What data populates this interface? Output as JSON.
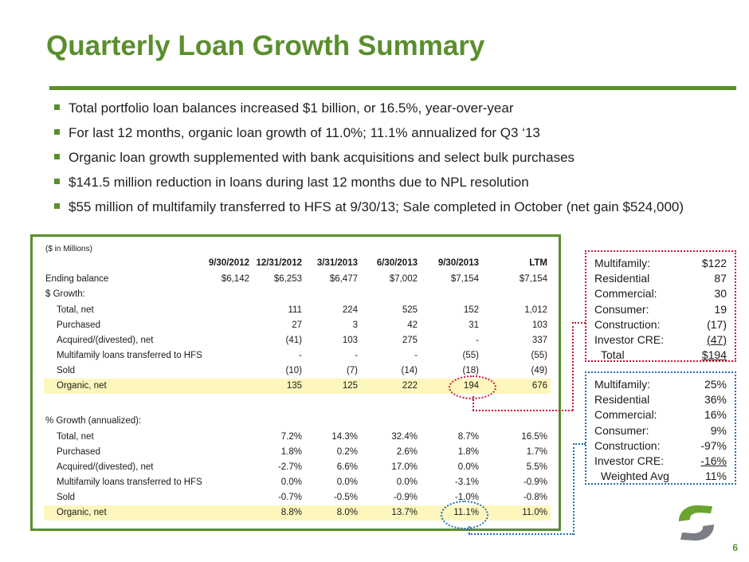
{
  "title": "Quarterly Loan Growth Summary",
  "bullets": [
    "Total portfolio loan balances increased $1 billion, or 16.5%, year-over-year",
    "For last 12 months, organic loan growth of 11.0%; 11.1% annualized for Q3 ‘13",
    "Organic loan growth supplemented with bank acquisitions and select bulk purchases",
    "$141.5 million reduction in loans during last 12 months due to NPL resolution",
    "$55 million of multifamily transferred to HFS at 9/30/13; Sale completed in October (net gain $524,000)"
  ],
  "table": {
    "unit_note": "($ in Millions)",
    "columns": [
      "9/30/2012",
      "12/31/2012",
      "3/31/2013",
      "6/30/2013",
      "9/30/2013",
      "LTM"
    ],
    "ending": {
      "label": "Ending balance",
      "values": [
        "$6,142",
        "$6,253",
        "$6,477",
        "$7,002",
        "$7,154",
        "$7,154"
      ]
    },
    "growth_header": "$ Growth:",
    "growth_rows": [
      {
        "label": "Total, net",
        "values": [
          "111",
          "224",
          "525",
          "152",
          "1,012"
        ]
      },
      {
        "label": "Purchased",
        "values": [
          "27",
          "3",
          "42",
          "31",
          "103"
        ]
      },
      {
        "label": "Acquired/(divested), net",
        "values": [
          "(41)",
          "103",
          "275",
          "-",
          "337"
        ]
      },
      {
        "label": "Multifamily loans transferred to HFS",
        "values": [
          "-",
          "-",
          "-",
          "(55)",
          "(55)"
        ]
      },
      {
        "label": "Sold",
        "values": [
          "(10)",
          "(7)",
          "(14)",
          "(18)",
          "(49)"
        ]
      },
      {
        "label": "Organic, net",
        "values": [
          "135",
          "125",
          "222",
          "194",
          "676"
        ]
      }
    ],
    "pct_header": "% Growth (annualized):",
    "pct_rows": [
      {
        "label": "Total, net",
        "values": [
          "7.2%",
          "14.3%",
          "32.4%",
          "8.7%",
          "16.5%"
        ]
      },
      {
        "label": "Purchased",
        "values": [
          "1.8%",
          "0.2%",
          "2.6%",
          "1.8%",
          "1.7%"
        ]
      },
      {
        "label": "Acquired/(divested), net",
        "values": [
          "-2.7%",
          "6.6%",
          "17.0%",
          "0.0%",
          "5.5%"
        ]
      },
      {
        "label": "Multifamily loans transferred to HFS",
        "values": [
          "0.0%",
          "0.0%",
          "0.0%",
          "-3.1%",
          "-0.9%"
        ]
      },
      {
        "label": "Sold",
        "values": [
          "-0.7%",
          "-0.5%",
          "-0.9%",
          "-1.0%",
          "-0.8%"
        ]
      },
      {
        "label": "Organic, net",
        "values": [
          "8.8%",
          "8.0%",
          "13.7%",
          "11.1%",
          "11.0%"
        ]
      }
    ]
  },
  "red_box": {
    "rows": [
      {
        "k": "Multifamily:",
        "v": "$122"
      },
      {
        "k": "Residential",
        "v": "87"
      },
      {
        "k": "Commercial:",
        "v": "30"
      },
      {
        "k": "Consumer:",
        "v": "19"
      },
      {
        "k": "Construction:",
        "v": "(17)"
      },
      {
        "k": "Investor CRE:",
        "v": "(47)"
      },
      {
        "k": "Total",
        "v": "$194"
      }
    ]
  },
  "blue_box": {
    "rows": [
      {
        "k": "Multifamily:",
        "v": "25%"
      },
      {
        "k": "Residential",
        "v": "36%"
      },
      {
        "k": "Commercial:",
        "v": "16%"
      },
      {
        "k": "Consumer:",
        "v": "9%"
      },
      {
        "k": "Construction:",
        "v": "-97%"
      },
      {
        "k": "Investor CRE:",
        "v": "-16%"
      },
      {
        "k": "Weighted Avg",
        "v": "11%"
      }
    ]
  },
  "colors": {
    "brand_green": "#5a8f2d",
    "highlight": "#fdf7bd",
    "red_callout": "#c8143c",
    "blue_callout": "#1f6fb8"
  },
  "page_number": "6",
  "logo": "company-s-logo"
}
